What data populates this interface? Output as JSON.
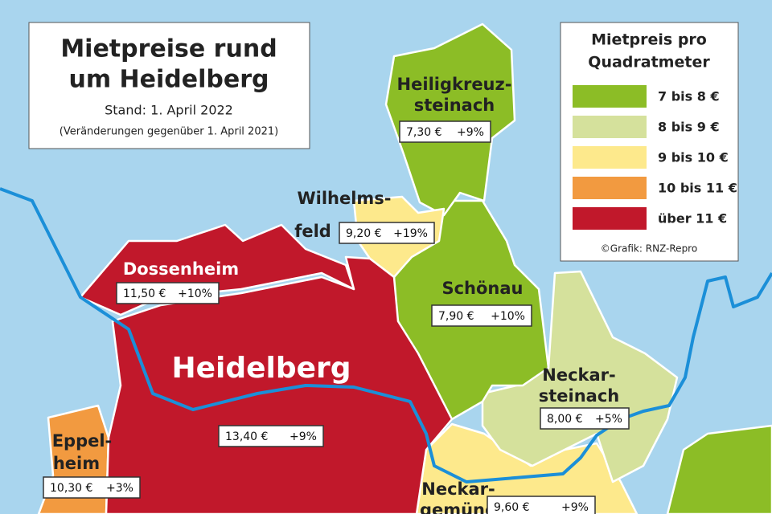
{
  "header": {
    "title": [
      "Mietpreise rund",
      "um Heidelberg"
    ],
    "stand": "Stand: 1. April 2022",
    "note": "(Veränderungen gegenüber 1. April 2021)"
  },
  "legend": {
    "title": [
      "Mietpreis pro",
      "Quadratmeter"
    ],
    "items": [
      {
        "label": "7 bis 8 €",
        "color": "#8cbd26"
      },
      {
        "label": "8 bis 9 €",
        "color": "#d5e19c"
      },
      {
        "label": "9 bis 10 €",
        "color": "#fde98c"
      },
      {
        "label": "10 bis 11 €",
        "color": "#f29a40"
      },
      {
        "label": "über 11 €",
        "color": "#c1182b"
      }
    ],
    "credit": "©Grafik: RNZ-Repro"
  },
  "regions": [
    {
      "name": [
        "Heiligkreuz-",
        "steinach"
      ],
      "price": "7,30 €",
      "change": "+9%",
      "color": "#8cbd26"
    },
    {
      "name": [
        "Wilhelms-",
        "feld"
      ],
      "price": "9,20 €",
      "change": "+19%",
      "color": "#fde98c"
    },
    {
      "name": [
        "Dossenheim"
      ],
      "price": "11,50 €",
      "change": "+10%",
      "color": "#c1182b"
    },
    {
      "name": [
        "Schönau"
      ],
      "price": "7,90 €",
      "change": "+10%",
      "color": "#8cbd26"
    },
    {
      "name": [
        "Heidelberg"
      ],
      "price": "13,40 €",
      "change": "+9%",
      "color": "#c1182b"
    },
    {
      "name": [
        "Neckar-",
        "steinach"
      ],
      "price": "8,00 €",
      "change": "+5%",
      "color": "#d5e19c"
    },
    {
      "name": [
        "Eppel-",
        "heim"
      ],
      "price": "10,30 €",
      "change": "+3%",
      "color": "#f29a40"
    },
    {
      "name": [
        "Neckar-",
        "gemünd"
      ],
      "price": "9,60 €",
      "change": "+9%",
      "color": "#fde98c"
    }
  ]
}
